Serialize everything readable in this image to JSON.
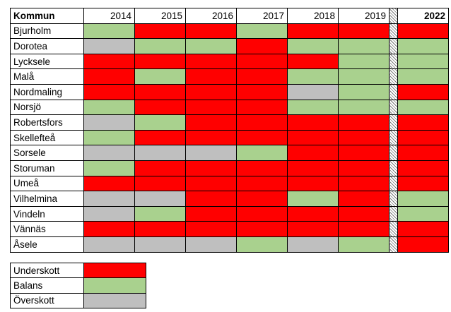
{
  "colors": {
    "Underskott": "#ff0000",
    "Balans": "#a9d18e",
    "Överskott": "#bfbfbf"
  },
  "table": {
    "header_label": "Kommun",
    "years": [
      "2014",
      "2015",
      "2016",
      "2017",
      "2018",
      "2019"
    ],
    "last_year": "2022",
    "rows": [
      {
        "name": "Bjurholm",
        "statuses": [
          "Balans",
          "Underskott",
          "Underskott",
          "Balans",
          "Underskott",
          "Underskott"
        ],
        "last": "Underskott"
      },
      {
        "name": "Dorotea",
        "statuses": [
          "Överskott",
          "Balans",
          "Balans",
          "Underskott",
          "Balans",
          "Balans"
        ],
        "last": "Balans"
      },
      {
        "name": "Lycksele",
        "statuses": [
          "Underskott",
          "Underskott",
          "Underskott",
          "Underskott",
          "Underskott",
          "Balans"
        ],
        "last": "Balans"
      },
      {
        "name": "Malå",
        "statuses": [
          "Underskott",
          "Balans",
          "Underskott",
          "Underskott",
          "Balans",
          "Balans"
        ],
        "last": "Balans"
      },
      {
        "name": "Nordmaling",
        "statuses": [
          "Underskott",
          "Underskott",
          "Underskott",
          "Underskott",
          "Överskott",
          "Balans"
        ],
        "last": "Underskott"
      },
      {
        "name": "Norsjö",
        "statuses": [
          "Balans",
          "Underskott",
          "Underskott",
          "Underskott",
          "Balans",
          "Balans"
        ],
        "last": "Balans"
      },
      {
        "name": "Robertsfors",
        "statuses": [
          "Överskott",
          "Balans",
          "Underskott",
          "Underskott",
          "Underskott",
          "Underskott"
        ],
        "last": "Underskott"
      },
      {
        "name": "Skellefteå",
        "statuses": [
          "Balans",
          "Underskott",
          "Underskott",
          "Underskott",
          "Underskott",
          "Underskott"
        ],
        "last": "Underskott"
      },
      {
        "name": "Sorsele",
        "statuses": [
          "Överskott",
          "Överskott",
          "Överskott",
          "Balans",
          "Underskott",
          "Underskott"
        ],
        "last": "Underskott"
      },
      {
        "name": "Storuman",
        "statuses": [
          "Balans",
          "Underskott",
          "Underskott",
          "Underskott",
          "Underskott",
          "Underskott"
        ],
        "last": "Underskott"
      },
      {
        "name": "Umeå",
        "statuses": [
          "Underskott",
          "Underskott",
          "Underskott",
          "Underskott",
          "Underskott",
          "Underskott"
        ],
        "last": "Underskott"
      },
      {
        "name": "Vilhelmina",
        "statuses": [
          "Överskott",
          "Överskott",
          "Underskott",
          "Underskott",
          "Balans",
          "Underskott"
        ],
        "last": "Balans"
      },
      {
        "name": "Vindeln",
        "statuses": [
          "Överskott",
          "Balans",
          "Underskott",
          "Underskott",
          "Underskott",
          "Underskott"
        ],
        "last": "Balans"
      },
      {
        "name": "Vännäs",
        "statuses": [
          "Underskott",
          "Underskott",
          "Underskott",
          "Underskott",
          "Underskott",
          "Underskott"
        ],
        "last": "Underskott"
      },
      {
        "name": "Åsele",
        "statuses": [
          "Överskott",
          "Överskott",
          "Överskott",
          "Balans",
          "Överskott",
          "Balans"
        ],
        "last": "Underskott"
      }
    ]
  },
  "legend": [
    {
      "label": "Underskott",
      "status": "Underskott"
    },
    {
      "label": "Balans",
      "status": "Balans"
    },
    {
      "label": "Överskott",
      "status": "Överskott"
    }
  ]
}
